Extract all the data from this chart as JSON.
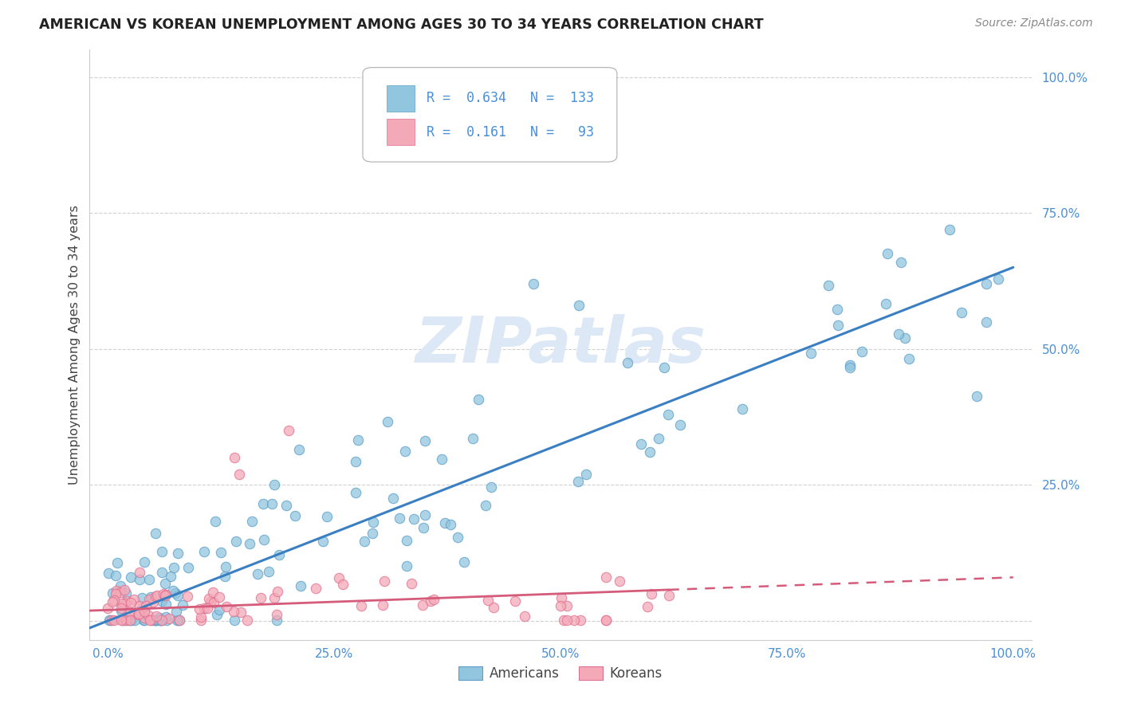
{
  "title": "AMERICAN VS KOREAN UNEMPLOYMENT AMONG AGES 30 TO 34 YEARS CORRELATION CHART",
  "source": "Source: ZipAtlas.com",
  "ylabel": "Unemployment Among Ages 30 to 34 years",
  "xlim": [
    0.0,
    1.0
  ],
  "ylim": [
    0.0,
    1.0
  ],
  "x_ticks": [
    0.0,
    0.25,
    0.5,
    0.75,
    1.0
  ],
  "y_ticks": [
    0.0,
    0.25,
    0.5,
    0.75,
    1.0
  ],
  "x_tick_labels": [
    "0.0%",
    "25.0%",
    "50.0%",
    "75.0%",
    "100.0%"
  ],
  "y_tick_labels": [
    "",
    "25.0%",
    "50.0%",
    "75.0%",
    "100.0%"
  ],
  "americans_R": 0.634,
  "americans_N": 133,
  "koreans_R": 0.161,
  "koreans_N": 93,
  "blue_color": "#92c5de",
  "blue_edge_color": "#5b9ec9",
  "pink_color": "#f4a9b8",
  "pink_edge_color": "#e07090",
  "blue_line_color": "#3a7fc1",
  "pink_line_color": "#d45c7a",
  "tick_color": "#4a90d9",
  "watermark_text": "ZIPatlas",
  "watermark_color": "#dce8f5",
  "legend_labels": [
    "Americans",
    "Koreans"
  ],
  "stat_box_text1": "R =  0.634   N =  133",
  "stat_box_text2": "R =  0.161   N =   93"
}
